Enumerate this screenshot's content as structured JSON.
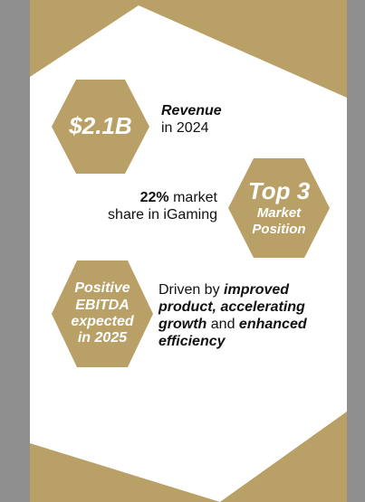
{
  "colors": {
    "gold": "#b9a066",
    "white": "#ffffff",
    "text": "#111111",
    "outer_bg": "#8f8f8f"
  },
  "stats": [
    {
      "hex_text": "$2.1B",
      "desc_bold": "Revenue",
      "desc_rest": "in 2024"
    },
    {
      "hex_big": "Top 3",
      "hex_small_1": "Market",
      "hex_small_2": "Position",
      "desc_bold": "22%",
      "desc_rest_1": " market",
      "desc_rest_2": "share in iGaming"
    },
    {
      "hex_text": "Positive\nEBITDA\nexpected\nin 2025",
      "desc_part_1": "Driven by ",
      "desc_bold_1": "improved product, accelerating growth",
      "desc_part_2": " and ",
      "desc_bold_2": "enhanced efficiency"
    }
  ]
}
